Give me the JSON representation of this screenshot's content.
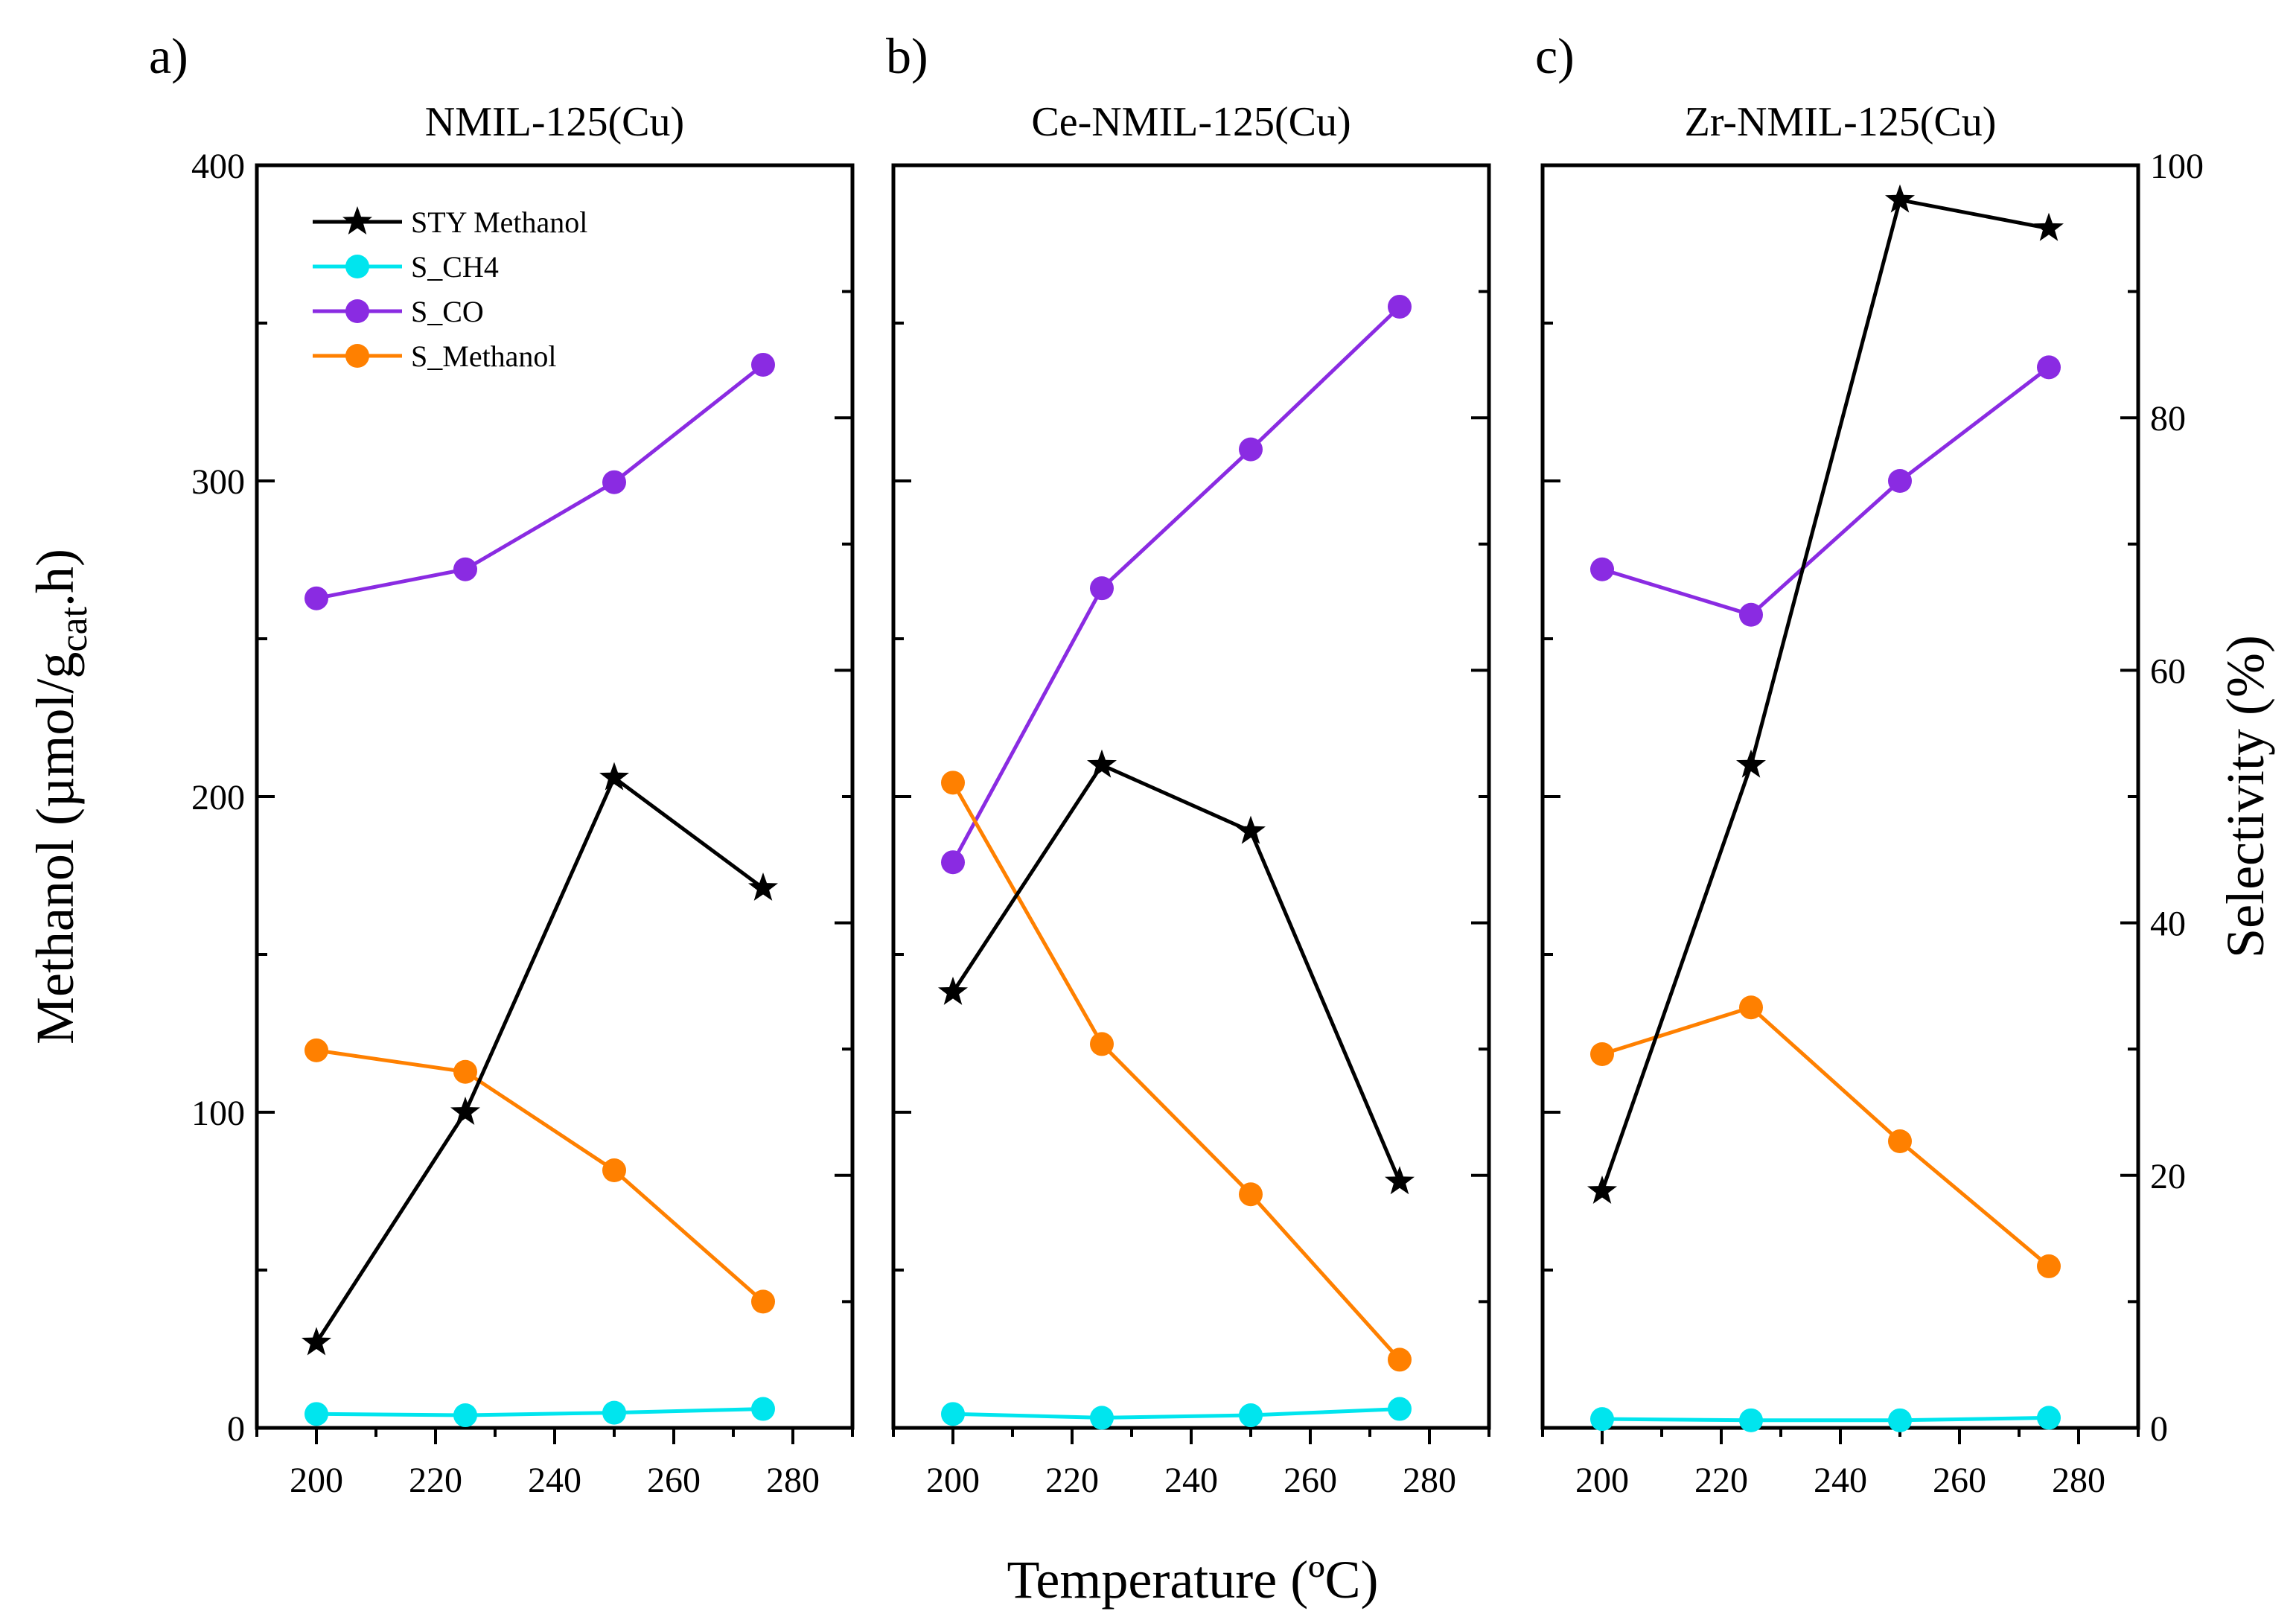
{
  "figure": {
    "x_axis_title": "Temperature (ºC)",
    "y_left_title_main": "Methanol (µmol/g",
    "y_left_title_sub": "cat",
    "y_left_title_end": ".h)",
    "y_right_title": "Selectivity (%)"
  },
  "legend": [
    {
      "label": "STY Methanol",
      "series": "sty",
      "marker": "star",
      "color": "#000000"
    },
    {
      "label": "S_CH4",
      "series": "s_ch4",
      "marker": "circle",
      "color": "#00e5ee"
    },
    {
      "label": "S_CO",
      "series": "s_co",
      "marker": "circle",
      "color": "#8a2be2"
    },
    {
      "label": "S_Methanol",
      "series": "s_methanol",
      "marker": "circle",
      "color": "#ff8000"
    }
  ],
  "chart_data": [
    {
      "type": "line",
      "panel": "a)",
      "title": "NMIL-125(Cu)",
      "x": [
        200,
        225,
        250,
        275
      ],
      "xlim": [
        190,
        290
      ],
      "xticks": [
        200,
        220,
        240,
        260,
        280
      ],
      "ylim_left": [
        0,
        400
      ],
      "yticks_left": [
        0,
        100,
        200,
        300,
        400
      ],
      "ylim_right": [
        0,
        100
      ],
      "series": [
        {
          "name": "STY Methanol",
          "axis": "left",
          "values": [
            27,
            100,
            206,
            171
          ]
        },
        {
          "name": "S_CH4",
          "axis": "right",
          "values": [
            1.1,
            1.0,
            1.2,
            1.5
          ]
        },
        {
          "name": "S_CO",
          "axis": "right",
          "values": [
            65.7,
            68.0,
            74.9,
            84.2
          ]
        },
        {
          "name": "S_Methanol",
          "axis": "right",
          "values": [
            29.9,
            28.2,
            20.4,
            10.0
          ]
        }
      ]
    },
    {
      "type": "line",
      "panel": "b)",
      "title": "Ce-NMIL-125(Cu)",
      "x": [
        200,
        225,
        250,
        275
      ],
      "xlim": [
        190,
        290
      ],
      "xticks": [
        200,
        220,
        240,
        260,
        280
      ],
      "ylim_left": [
        0,
        400
      ],
      "ylim_right": [
        0,
        100
      ],
      "series": [
        {
          "name": "STY Methanol",
          "axis": "left",
          "values": [
            138,
            210,
            189,
            78
          ]
        },
        {
          "name": "S_CH4",
          "axis": "right",
          "values": [
            1.1,
            0.8,
            1.0,
            1.5
          ]
        },
        {
          "name": "S_CO",
          "axis": "right",
          "values": [
            44.8,
            66.5,
            77.5,
            88.8
          ]
        },
        {
          "name": "S_Methanol",
          "axis": "right",
          "values": [
            51.1,
            30.4,
            18.5,
            5.4
          ]
        }
      ]
    },
    {
      "type": "line",
      "panel": "c)",
      "title": "Zr-NMIL-125(Cu)",
      "x": [
        200,
        225,
        250,
        275
      ],
      "xlim": [
        190,
        290
      ],
      "xticks": [
        200,
        220,
        240,
        260,
        280
      ],
      "ylim_left": [
        0,
        400
      ],
      "ylim_right": [
        0,
        100
      ],
      "yticks_right": [
        0,
        20,
        40,
        60,
        80,
        100
      ],
      "series": [
        {
          "name": "STY Methanol",
          "axis": "left",
          "values": [
            75,
            210,
            389,
            380
          ]
        },
        {
          "name": "S_CH4",
          "axis": "right",
          "values": [
            0.7,
            0.6,
            0.6,
            0.8
          ]
        },
        {
          "name": "S_CO",
          "axis": "right",
          "values": [
            68.0,
            64.4,
            75.0,
            84.0
          ]
        },
        {
          "name": "S_Methanol",
          "axis": "right",
          "values": [
            29.6,
            33.3,
            22.7,
            12.8
          ]
        }
      ]
    }
  ]
}
